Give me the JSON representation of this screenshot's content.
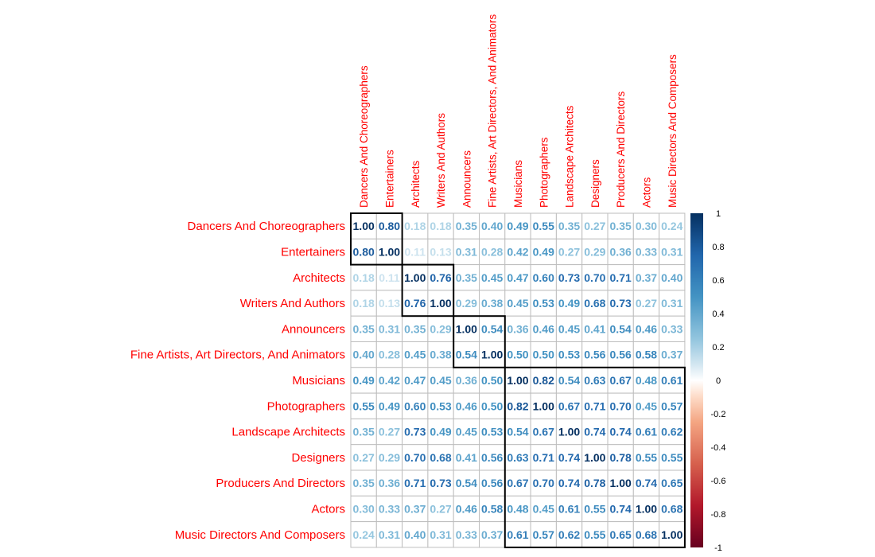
{
  "chart_data": {
    "type": "heatmap",
    "title": "",
    "labels": [
      "Dancers And Choreographers",
      "Entertainers",
      "Architects",
      "Writers And Authors",
      "Announcers",
      "Fine Artists, Art Directors, And Animators",
      "Musicians",
      "Photographers",
      "Landscape Architects",
      "Designers",
      "Producers And Directors",
      "Actors",
      "Music Directors And Composers"
    ],
    "matrix": [
      [
        1.0,
        0.8,
        0.18,
        0.18,
        0.35,
        0.4,
        0.49,
        0.55,
        0.35,
        0.27,
        0.35,
        0.3,
        0.24
      ],
      [
        0.8,
        1.0,
        0.11,
        0.13,
        0.31,
        0.28,
        0.42,
        0.49,
        0.27,
        0.29,
        0.36,
        0.33,
        0.31
      ],
      [
        0.18,
        0.11,
        1.0,
        0.76,
        0.35,
        0.45,
        0.47,
        0.6,
        0.73,
        0.7,
        0.71,
        0.37,
        0.4
      ],
      [
        0.18,
        0.13,
        0.76,
        1.0,
        0.29,
        0.38,
        0.45,
        0.53,
        0.49,
        0.68,
        0.73,
        0.27,
        0.31
      ],
      [
        0.35,
        0.31,
        0.35,
        0.29,
        1.0,
        0.54,
        0.36,
        0.46,
        0.45,
        0.41,
        0.54,
        0.46,
        0.33
      ],
      [
        0.4,
        0.28,
        0.45,
        0.38,
        0.54,
        1.0,
        0.5,
        0.5,
        0.53,
        0.56,
        0.56,
        0.58,
        0.37
      ],
      [
        0.49,
        0.42,
        0.47,
        0.45,
        0.36,
        0.5,
        1.0,
        0.82,
        0.54,
        0.63,
        0.67,
        0.48,
        0.61
      ],
      [
        0.55,
        0.49,
        0.6,
        0.53,
        0.46,
        0.5,
        0.82,
        1.0,
        0.67,
        0.71,
        0.7,
        0.45,
        0.57
      ],
      [
        0.35,
        0.27,
        0.73,
        0.49,
        0.45,
        0.53,
        0.54,
        0.67,
        1.0,
        0.74,
        0.74,
        0.61,
        0.62
      ],
      [
        0.27,
        0.29,
        0.7,
        0.68,
        0.41,
        0.56,
        0.63,
        0.71,
        0.74,
        1.0,
        0.78,
        0.55,
        0.55
      ],
      [
        0.35,
        0.36,
        0.71,
        0.73,
        0.54,
        0.56,
        0.67,
        0.7,
        0.74,
        0.78,
        1.0,
        0.74,
        0.65
      ],
      [
        0.3,
        0.33,
        0.37,
        0.27,
        0.46,
        0.58,
        0.48,
        0.45,
        0.61,
        0.55,
        0.74,
        1.0,
        0.68
      ],
      [
        0.24,
        0.31,
        0.4,
        0.31,
        0.33,
        0.37,
        0.61,
        0.57,
        0.62,
        0.55,
        0.65,
        0.68,
        1.0
      ]
    ],
    "clusters": [
      [
        0,
        1
      ],
      [
        2,
        3
      ],
      [
        4,
        5
      ],
      [
        6,
        12
      ]
    ],
    "color_scale": {
      "min": -1,
      "max": 1,
      "stops": [
        {
          "value": -1.0,
          "color": "#67001f"
        },
        {
          "value": -0.75,
          "color": "#b2182b"
        },
        {
          "value": -0.5,
          "color": "#d6604d"
        },
        {
          "value": -0.25,
          "color": "#f4a582"
        },
        {
          "value": -0.1,
          "color": "#fddbc7"
        },
        {
          "value": 0.0,
          "color": "#ffffff"
        },
        {
          "value": 0.1,
          "color": "#d1e5f0"
        },
        {
          "value": 0.25,
          "color": "#92c5de"
        },
        {
          "value": 0.5,
          "color": "#4393c3"
        },
        {
          "value": 0.75,
          "color": "#2166ac"
        },
        {
          "value": 1.0,
          "color": "#053061"
        }
      ],
      "ticks": [
        "1",
        "0.8",
        "0.6",
        "0.4",
        "0.2",
        "0",
        "-0.2",
        "-0.4",
        "-0.6",
        "-0.8",
        "-1"
      ]
    },
    "label_color": "#ff0000",
    "grid_color": "#bebebe",
    "cluster_border_color": "#000000"
  }
}
